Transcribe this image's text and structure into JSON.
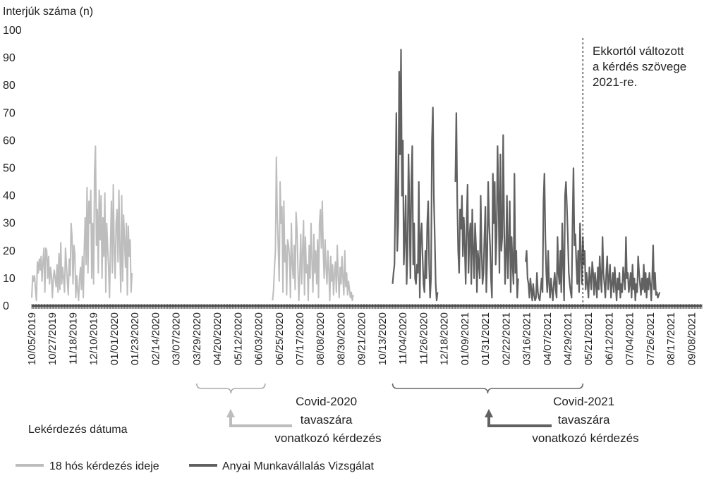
{
  "chart_data": {
    "type": "line",
    "ylabel": "Interjúk száma (n)",
    "xlabel": "Lekérdezés dátuma",
    "ylim": [
      0,
      100
    ],
    "yticks": [
      0,
      10,
      20,
      30,
      40,
      50,
      60,
      70,
      80,
      90,
      100
    ],
    "x_tick_labels": [
      "10/05/2019",
      "10/27/2019",
      "11/18/2019",
      "12/10/2019",
      "01/01/2020",
      "01/23/2020",
      "02/14/2020",
      "03/07/2020",
      "03/29/2020",
      "04/20/2020",
      "05/12/2020",
      "06/03/2020",
      "06/25/2020",
      "07/17/2020",
      "08/08/2020",
      "08/30/2020",
      "09/21/2020",
      "10/13/2020",
      "11/04/2020",
      "11/26/2020",
      "12/18/2020",
      "01/09/2021",
      "01/31/2021",
      "02/22/2021",
      "03/16/2021",
      "04/07/2021",
      "04/29/2021",
      "05/21/2021",
      "06/12/2021",
      "07/04/2021",
      "07/26/2021",
      "08/17/2021",
      "09/08/2021"
    ],
    "grid": false,
    "legend_position": "bottom-left",
    "colors": {
      "series_light": "#bdbdbd",
      "series_dark": "#616161",
      "axis": "#444444",
      "annotation": "#888888"
    },
    "series": [
      {
        "name": "18 hós kérdezés ideje",
        "color": "#bdbdbd",
        "segments": [
          {
            "x_start": "10/05/2019",
            "values": [
              3,
              11,
              9,
              11,
              6,
              2,
              16,
              12,
              17,
              13,
              18,
              9,
              16,
              21,
              5,
              21,
              20,
              10,
              18,
              8,
              14,
              11,
              3,
              10,
              13,
              10,
              7,
              15,
              5,
              19,
              6,
              23,
              8,
              14,
              10,
              5,
              21,
              15,
              9,
              4,
              17,
              11,
              30,
              25,
              8,
              22,
              19,
              3,
              11,
              6,
              2,
              10,
              14,
              6,
              18,
              3,
              20,
              32,
              15,
              43,
              12,
              38,
              30,
              42,
              10,
              30,
              8,
              48,
              58,
              22,
              35,
              12,
              42,
              24,
              40,
              10,
              32,
              18,
              41,
              5,
              30,
              21,
              14,
              3,
              22,
              38,
              12,
              44,
              20,
              10,
              30,
              35,
              16,
              42,
              21,
              5,
              40,
              9,
              33,
              24,
              14,
              30,
              4,
              29,
              18,
              24,
              5,
              12
            ]
          },
          {
            "x_start": "06/18/2020",
            "values": [
              2,
              6,
              14,
              20,
              54,
              32,
              22,
              9,
              45,
              30,
              36,
              5,
              38,
              16,
              22,
              4,
              24,
              22,
              18,
              3,
              30,
              15,
              10,
              22,
              6,
              34,
              28,
              14,
              2,
              12,
              26,
              8,
              20,
              31,
              4,
              25,
              12,
              15,
              2,
              22,
              10,
              30,
              16,
              5,
              26,
              12,
              20,
              8,
              24,
              3,
              30,
              35,
              21,
              38,
              20,
              10,
              24,
              14,
              8,
              20,
              13,
              2,
              18,
              9,
              15,
              4,
              12,
              16,
              5,
              22,
              11,
              3,
              14,
              8,
              18,
              10,
              4,
              20,
              7,
              12,
              4,
              9,
              6,
              3,
              5,
              2,
              4
            ]
          }
        ]
      },
      {
        "name": "Anyai Munkavállalás Vizsgálat",
        "color": "#616161",
        "segments": [
          {
            "x_start": "10/24/2020",
            "values": [
              8,
              12,
              15,
              40,
              70,
              20,
              30,
              85,
              55,
              93,
              40,
              60,
              15,
              25,
              40,
              8,
              20,
              55,
              35,
              10,
              45,
              58,
              15,
              30,
              10,
              8,
              15,
              12,
              45,
              3,
              25,
              30,
              18,
              8,
              5,
              20,
              10,
              30,
              38,
              15,
              3,
              10,
              60,
              72,
              40,
              25,
              8,
              2,
              5
            ]
          },
          {
            "x_start": "12/30/2020",
            "values": [
              45,
              70,
              38,
              20,
              12,
              35,
              28,
              40,
              18,
              32,
              22,
              8,
              30,
              44,
              12,
              25,
              30,
              8,
              35,
              20,
              10,
              30,
              22,
              5,
              20,
              15,
              10,
              40,
              20,
              8,
              12,
              25,
              36,
              5,
              18,
              45,
              30,
              22,
              10,
              3,
              48,
              30,
              45,
              15,
              25,
              58,
              40,
              12,
              55,
              20,
              25,
              62,
              30,
              8,
              18,
              40,
              10,
              22,
              38,
              5,
              25,
              15,
              8,
              48,
              12,
              20,
              3,
              10
            ]
          },
          {
            "x_start": "03/15/2021",
            "values": [
              16,
              20,
              10,
              8,
              3,
              10,
              6,
              2,
              8,
              4,
              2,
              3,
              12,
              5,
              3,
              2,
              6,
              10,
              5,
              38,
              48,
              25,
              12,
              5,
              20,
              8,
              3,
              10,
              6,
              2,
              8,
              12,
              6,
              3,
              25,
              12,
              8,
              20,
              5,
              30,
              15,
              2,
              40,
              45,
              36,
              25,
              12,
              8,
              5,
              3,
              30,
              50,
              22,
              26,
              16,
              8,
              20,
              5,
              30,
              18,
              8,
              25,
              15,
              20,
              6,
              12,
              8,
              3,
              14,
              10,
              6,
              16,
              12,
              4,
              12,
              8,
              3,
              14,
              6,
              18,
              10,
              5,
              25,
              12,
              8,
              3,
              12,
              18,
              6,
              10,
              15,
              3,
              8,
              12,
              5,
              14,
              8,
              2,
              10,
              6,
              12,
              3,
              8,
              5,
              14,
              10,
              6,
              25,
              10,
              12,
              5,
              8,
              12,
              3,
              15,
              6,
              10,
              2,
              8,
              5,
              18,
              12,
              8,
              4,
              10,
              6,
              15,
              5,
              12,
              3,
              10,
              6,
              12,
              8,
              2,
              10,
              22,
              6,
              12,
              4,
              5,
              3,
              4,
              5
            ]
          }
        ]
      }
    ],
    "annotations": {
      "vertical_line_date": "05/15/2021",
      "vertical_line_text": [
        "Ekkortól változott",
        "a kérdés szövege",
        "2021-re."
      ],
      "bracket_2020": {
        "from": "03/29/2020",
        "to": "06/10/2020",
        "text": [
          "Covid-2020",
          "tavaszára",
          "vonatkozó kérdezés"
        ]
      },
      "bracket_2021": {
        "from": "10/24/2020",
        "to": "05/15/2021",
        "text": [
          "Covid-2021",
          "tavaszára",
          "vonatkozó kérdezés"
        ]
      }
    }
  }
}
